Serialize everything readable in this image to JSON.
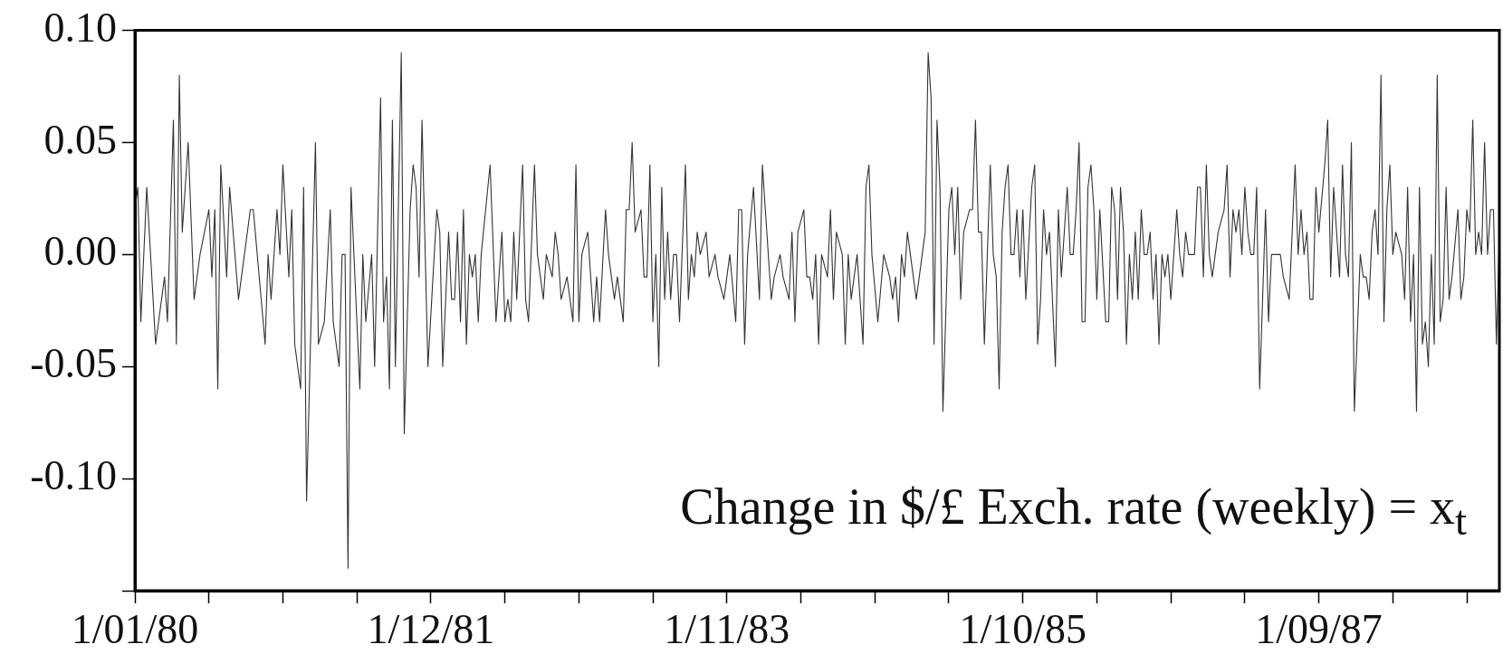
{
  "chart_data": {
    "type": "line",
    "annotations": [
      "Change in $/£ Exch. rate (weekly) = x$_{t}$"
    ],
    "xlim": [
      "1980-01-01",
      "1988-11-01"
    ],
    "xticks": [
      {
        "value": "1980-01-01",
        "label": "1/01/80"
      },
      {
        "value": "1980-06-24",
        "label": null
      },
      {
        "value": "1980-12-16",
        "label": null
      },
      {
        "value": "1981-06-09",
        "label": null
      },
      {
        "value": "1981-12-01",
        "label": "1/12/81"
      },
      {
        "value": "1982-05-25",
        "label": null
      },
      {
        "value": "1982-11-16",
        "label": null
      },
      {
        "value": "1983-05-10",
        "label": null
      },
      {
        "value": "1983-11-01",
        "label": "1/11/83"
      },
      {
        "value": "1984-04-24",
        "label": null
      },
      {
        "value": "1984-10-16",
        "label": null
      },
      {
        "value": "1985-04-09",
        "label": null
      },
      {
        "value": "1985-10-01",
        "label": "1/10/85"
      },
      {
        "value": "1986-03-25",
        "label": null
      },
      {
        "value": "1986-09-16",
        "label": null
      },
      {
        "value": "1987-03-10",
        "label": null
      },
      {
        "value": "1987-09-01",
        "label": "1/09/87"
      },
      {
        "value": "1988-02-23",
        "label": null
      },
      {
        "value": "1988-08-16",
        "label": null
      }
    ],
    "ylim": [
      -0.15,
      0.1
    ],
    "yticks": [
      {
        "value": 0.1,
        "label": "0.10"
      },
      {
        "value": 0.05,
        "label": "0.05"
      },
      {
        "value": 0,
        "label": "0.00"
      },
      {
        "value": -0.05,
        "label": "-0.05"
      },
      {
        "value": -0.1,
        "label": "-0.10"
      },
      {
        "value": -0.15,
        "label": null
      }
    ],
    "color": "#333333",
    "line_style": "solid",
    "x": [
      "1980-01-01",
      "1980-01-08",
      "1980-01-15",
      "1980-01-29",
      "1980-02-19",
      "1980-03-11",
      "1980-03-18",
      "1980-04-01",
      "1980-04-08",
      "1980-04-15",
      "1980-04-22",
      "1980-05-06",
      "1980-05-20",
      "1980-06-03",
      "1980-06-24",
      "1980-07-01",
      "1980-07-08",
      "1980-07-15",
      "1980-07-22",
      "1980-08-05",
      "1980-08-12",
      "1980-09-02",
      "1980-09-30",
      "1980-10-07",
      "1980-11-04",
      "1980-11-11",
      "1980-11-18",
      "1980-12-02",
      "1980-12-09",
      "1980-12-16",
      "1980-12-30",
      "1981-01-06",
      "1981-01-13",
      "1981-01-27",
      "1981-02-03",
      "1981-02-10",
      "1981-03-03",
      "1981-03-10",
      "1981-03-24",
      "1981-04-07",
      "1981-04-14",
      "1981-04-28",
      "1981-05-05",
      "1981-05-12",
      "1981-05-19",
      "1981-05-26",
      "1981-06-16",
      "1981-06-23",
      "1981-06-30",
      "1981-07-14",
      "1981-07-21",
      "1981-08-04",
      "1981-08-11",
      "1981-08-18",
      "1981-08-25",
      "1981-09-01",
      "1981-09-08",
      "1981-09-22",
      "1981-09-29",
      "1981-10-13",
      "1981-10-20",
      "1981-10-27",
      "1981-11-03",
      "1981-11-10",
      "1981-11-24",
      "1981-12-15",
      "1981-12-22",
      "1981-12-29",
      "1982-01-12",
      "1982-01-19",
      "1982-01-26",
      "1982-02-02",
      "1982-02-09",
      "1982-02-16",
      "1982-02-23",
      "1982-03-02",
      "1982-03-09",
      "1982-03-16",
      "1982-03-23",
      "1982-03-30",
      "1982-04-20",
      "1982-05-04",
      "1982-05-18",
      "1982-05-25",
      "1982-06-01",
      "1982-06-08",
      "1982-06-15",
      "1982-06-22",
      "1982-07-06",
      "1982-07-13",
      "1982-07-20",
      "1982-08-03",
      "1982-08-10",
      "1982-08-24",
      "1982-08-31",
      "1982-09-14",
      "1982-09-21",
      "1982-09-28",
      "1982-10-05",
      "1982-10-19",
      "1982-11-02",
      "1982-11-09",
      "1982-11-16",
      "1982-11-23",
      "1982-12-07",
      "1982-12-21",
      "1982-12-28",
      "1983-01-04",
      "1983-01-18",
      "1983-01-25",
      "1983-02-08",
      "1983-02-15",
      "1983-03-01",
      "1983-03-08",
      "1983-03-15",
      "1983-03-22",
      "1983-03-29",
      "1983-04-12",
      "1983-04-19",
      "1983-04-26",
      "1983-05-03",
      "1983-05-10",
      "1983-05-17",
      "1983-05-24",
      "1983-05-31",
      "1983-06-07",
      "1983-06-14",
      "1983-06-21",
      "1983-06-28",
      "1983-07-05",
      "1983-07-12",
      "1983-07-26",
      "1983-08-02",
      "1983-08-09",
      "1983-08-16",
      "1983-08-23",
      "1983-08-30",
      "1983-09-13",
      "1983-09-20",
      "1983-10-04",
      "1983-10-11",
      "1983-10-25",
      "1983-11-08",
      "1983-11-22",
      "1983-11-29",
      "1983-12-06",
      "1983-12-13",
      "1983-12-20",
      "1984-01-03",
      "1984-01-17",
      "1984-01-24",
      "1984-01-31",
      "1984-02-14",
      "1984-02-21",
      "1984-03-06",
      "1984-03-13",
      "1984-03-27",
      "1984-04-03",
      "1984-04-10",
      "1984-04-17",
      "1984-05-01",
      "1984-05-08",
      "1984-05-15",
      "1984-05-22",
      "1984-05-29",
      "1984-06-05",
      "1984-06-12",
      "1984-06-26",
      "1984-07-03",
      "1984-07-10",
      "1984-07-17",
      "1984-07-31",
      "1984-08-07",
      "1984-08-14",
      "1984-08-21",
      "1984-09-04",
      "1984-09-18",
      "1984-09-25",
      "1984-10-02",
      "1984-10-09",
      "1984-10-23",
      "1984-11-06",
      "1984-11-20",
      "1984-11-27",
      "1984-12-04",
      "1984-12-11",
      "1984-12-18",
      "1984-12-25",
      "1985-01-01",
      "1985-01-15",
      "1985-01-22",
      "1985-02-12",
      "1985-02-19",
      "1985-02-26",
      "1985-03-05",
      "1985-03-12",
      "1985-03-19",
      "1985-03-26",
      "1985-04-09",
      "1985-04-16",
      "1985-04-23",
      "1985-04-30",
      "1985-05-07",
      "1985-05-14",
      "1985-05-28",
      "1985-06-04",
      "1985-06-11",
      "1985-06-18",
      "1985-06-25",
      "1985-07-02",
      "1985-07-16",
      "1985-07-23",
      "1985-07-30",
      "1985-08-06",
      "1985-08-13",
      "1985-08-20",
      "1985-08-27",
      "1985-09-03",
      "1985-09-10",
      "1985-09-17",
      "1985-09-24",
      "1985-10-01",
      "1985-10-08",
      "1985-10-22",
      "1985-10-29",
      "1985-11-05",
      "1985-11-12",
      "1985-11-19",
      "1985-11-26",
      "1985-12-03",
      "1985-12-17",
      "1985-12-24",
      "1985-12-31",
      "1986-01-14",
      "1986-01-21",
      "1986-01-28",
      "1986-02-04",
      "1986-02-11",
      "1986-02-18",
      "1986-02-25",
      "1986-03-04",
      "1986-03-11",
      "1986-03-18",
      "1986-03-25",
      "1986-04-01",
      "1986-04-15",
      "1986-04-22",
      "1986-04-29",
      "1986-05-06",
      "1986-05-13",
      "1986-05-20",
      "1986-05-27",
      "1986-06-03",
      "1986-06-10",
      "1986-06-17",
      "1986-06-24",
      "1986-07-01",
      "1986-07-08",
      "1986-07-15",
      "1986-07-22",
      "1986-07-29",
      "1986-08-05",
      "1986-08-12",
      "1986-08-19",
      "1986-08-26",
      "1986-09-02",
      "1986-09-09",
      "1986-09-16",
      "1986-09-30",
      "1986-10-07",
      "1986-10-14",
      "1986-10-21",
      "1986-10-28",
      "1986-11-11",
      "1986-11-18",
      "1986-11-25",
      "1986-12-02",
      "1986-12-09",
      "1986-12-16",
      "1986-12-23",
      "1987-01-06",
      "1987-01-20",
      "1987-01-27",
      "1987-02-03",
      "1987-02-10",
      "1987-02-17",
      "1987-02-24",
      "1987-03-03",
      "1987-03-10",
      "1987-03-17",
      "1987-03-24",
      "1987-03-31",
      "1987-04-07",
      "1987-04-14",
      "1987-04-28",
      "1987-05-05",
      "1987-05-12",
      "1987-05-19",
      "1987-06-02",
      "1987-06-09",
      "1987-06-23",
      "1987-07-07",
      "1987-07-14",
      "1987-07-21",
      "1987-07-28",
      "1987-08-04",
      "1987-08-11",
      "1987-08-18",
      "1987-08-25",
      "1987-09-01",
      "1987-09-15",
      "1987-09-22",
      "1987-09-29",
      "1987-10-06",
      "1987-10-20",
      "1987-10-27",
      "1987-11-03",
      "1987-11-10",
      "1987-11-17",
      "1987-11-24",
      "1987-12-08",
      "1987-12-15",
      "1987-12-22",
      "1987-12-29",
      "1988-01-05",
      "1988-01-12",
      "1988-01-19",
      "1988-01-26",
      "1988-02-02",
      "1988-02-09",
      "1988-02-16",
      "1988-02-23",
      "1988-03-01",
      "1988-03-15",
      "1988-03-22",
      "1988-03-29",
      "1988-04-05",
      "1988-04-12",
      "1988-04-19",
      "1988-04-26",
      "1988-05-03",
      "1988-05-10",
      "1988-05-17",
      "1988-05-24",
      "1988-05-31",
      "1988-06-07",
      "1988-06-14",
      "1988-06-21",
      "1988-06-28",
      "1988-07-05",
      "1988-07-12",
      "1988-07-26",
      "1988-08-02",
      "1988-08-09",
      "1988-08-16",
      "1988-08-23",
      "1988-08-30",
      "1988-09-06",
      "1988-09-13",
      "1988-09-20",
      "1988-09-27",
      "1988-10-04",
      "1988-10-11",
      "1988-10-18",
      "1988-10-25",
      "1988-11-01"
    ],
    "values": [
      0.02,
      0.03,
      -0.03,
      0.03,
      -0.04,
      -0.01,
      -0.03,
      0.06,
      -0.04,
      0.08,
      0.01,
      0.05,
      -0.02,
      0,
      0.02,
      -0.01,
      0.02,
      -0.06,
      0.04,
      -0.01,
      0.03,
      -0.02,
      0.02,
      0.02,
      -0.04,
      0,
      -0.02,
      0.02,
      0,
      0.04,
      -0.01,
      0.02,
      -0.04,
      -0.06,
      0.03,
      -0.11,
      0.05,
      -0.04,
      -0.03,
      0.02,
      -0.03,
      -0.05,
      0,
      0,
      -0.14,
      0.03,
      -0.06,
      0,
      -0.03,
      0,
      -0.05,
      0.07,
      -0.03,
      -0.01,
      -0.06,
      0.06,
      -0.05,
      0.09,
      -0.08,
      0.02,
      0.04,
      0.03,
      -0.01,
      0.06,
      -0.05,
      0.02,
      0.01,
      -0.05,
      0.01,
      -0.02,
      -0.02,
      0.01,
      -0.03,
      0.02,
      -0.04,
      0,
      -0.01,
      0,
      -0.03,
      0,
      0.04,
      -0.03,
      0.01,
      -0.03,
      -0.02,
      -0.03,
      0.01,
      -0.02,
      0.04,
      -0.02,
      -0.03,
      0.04,
      0,
      -0.02,
      0,
      -0.01,
      0.01,
      0,
      -0.02,
      -0.01,
      -0.03,
      0.04,
      -0.03,
      0,
      0.01,
      -0.03,
      -0.01,
      -0.03,
      0.02,
      0,
      -0.02,
      -0.01,
      -0.03,
      0.02,
      0.02,
      0.05,
      0.01,
      0.02,
      -0.01,
      -0.01,
      0.04,
      -0.03,
      0,
      -0.05,
      0.03,
      -0.02,
      0.01,
      -0.02,
      0,
      0,
      -0.03,
      0.04,
      -0.02,
      0,
      -0.01,
      0.01,
      0,
      0.01,
      -0.01,
      0,
      -0.01,
      -0.02,
      0,
      -0.03,
      0.02,
      0.02,
      -0.04,
      0,
      0.03,
      -0.02,
      0.04,
      0.02,
      -0.02,
      -0.01,
      0,
      -0.01,
      -0.02,
      0.01,
      -0.03,
      0.01,
      0.02,
      -0.01,
      -0.01,
      -0.02,
      0,
      -0.04,
      0,
      -0.01,
      0.02,
      -0.02,
      0.01,
      0,
      -0.04,
      0,
      -0.02,
      0,
      -0.04,
      0.03,
      0.04,
      0,
      -0.03,
      0,
      -0.01,
      -0.02,
      -0.01,
      -0.03,
      0,
      -0.01,
      0.01,
      -0.01,
      -0.02,
      0.01,
      0.09,
      0.07,
      -0.04,
      0.06,
      0.03,
      -0.07,
      0.02,
      0.03,
      0,
      0.03,
      -0.02,
      0.01,
      0.02,
      0.02,
      0.06,
      0.01,
      0.01,
      -0.04,
      0.04,
      0,
      -0.01,
      -0.06,
      0.01,
      0.03,
      0.04,
      0,
      0,
      0.02,
      -0.01,
      0.02,
      -0.02,
      0.03,
      0.04,
      -0.04,
      -0.02,
      0.02,
      0,
      0.01,
      -0.05,
      0.02,
      -0.01,
      0.03,
      0,
      0,
      0.02,
      0.05,
      -0.03,
      -0.03,
      0.03,
      0.04,
      0.02,
      -0.02,
      0.02,
      -0.03,
      -0.03,
      0.03,
      0.02,
      -0.02,
      0.03,
      0.01,
      -0.04,
      0,
      -0.02,
      0.01,
      -0.02,
      0.02,
      0,
      0,
      0.01,
      -0.02,
      0,
      -0.04,
      0,
      -0.01,
      0,
      -0.02,
      0.02,
      0,
      -0.01,
      0.01,
      0,
      0,
      0.03,
      0.03,
      -0.01,
      0.04,
      0,
      -0.01,
      0.01,
      0.02,
      0.04,
      -0.01,
      0.02,
      0.01,
      0.02,
      0,
      0.03,
      0.01,
      0,
      0,
      0.03,
      -0.06,
      0.02,
      -0.03,
      0,
      0,
      0,
      -0.01,
      -0.02,
      0.04,
      0,
      0.02,
      0,
      0.01,
      -0.02,
      -0.02,
      0.03,
      0.01,
      0.04,
      0.06,
      -0.01,
      0.03,
      -0.01,
      0.04,
      0,
      -0.01,
      0.05,
      -0.07,
      0,
      -0.01,
      -0.01,
      -0.02,
      0.01,
      0.02,
      0,
      0.08,
      -0.03,
      0.02,
      0.04,
      0,
      0.01,
      0,
      -0.02,
      0.03,
      -0.03,
      0,
      -0.07,
      0.03,
      -0.04,
      -0.03,
      -0.05,
      0,
      -0.04,
      0.08,
      -0.03,
      -0.02,
      0.03,
      -0.02,
      -0.01,
      0.02,
      -0.02,
      -0.01,
      0.02,
      0.01,
      0.06,
      0,
      0.01,
      0,
      0.05,
      0,
      0.02,
      0.02,
      -0.04,
      0.01
    ]
  }
}
